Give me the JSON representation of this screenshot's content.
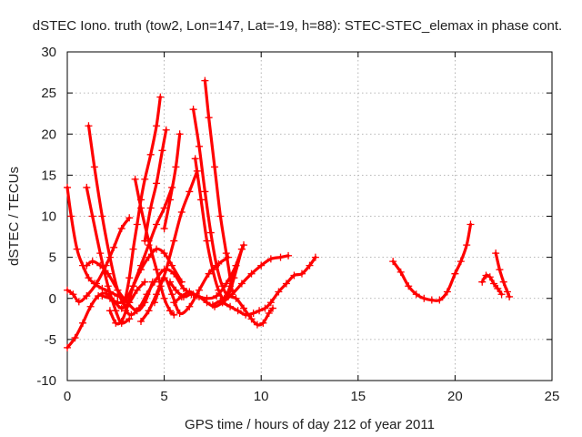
{
  "chart_data": {
    "type": "line",
    "title": "dSTEC Iono. truth (tow2, Lon=147, Lat=-19, h=88): STEC-STEC_elemax in phase cont.",
    "xlabel": "GPS time / hours of day 212 of year 2011",
    "ylabel": "dSTEC  / TECUs",
    "xlim": [
      0,
      25
    ],
    "ylim": [
      -10,
      30
    ],
    "xticks": [
      0,
      5,
      10,
      15,
      20,
      25
    ],
    "yticks": [
      -10,
      -5,
      0,
      5,
      10,
      15,
      20,
      25,
      30
    ],
    "grid": true,
    "marker": "plus",
    "color": "#ff0000",
    "series": [
      {
        "x": [
          0.0,
          0.2,
          0.5,
          0.8,
          1.1,
          1.4,
          1.8,
          2.2,
          2.6,
          3.0
        ],
        "y": [
          13.5,
          10.0,
          6.0,
          4.0,
          2.5,
          1.8,
          1.2,
          0.8,
          0.3,
          0.0
        ]
      },
      {
        "x": [
          0.0,
          0.3,
          0.6,
          1.0,
          1.5,
          2.0,
          2.4,
          2.8,
          3.2
        ],
        "y": [
          1.0,
          0.5,
          -0.4,
          0.3,
          1.8,
          4.0,
          6.2,
          8.5,
          9.8
        ]
      },
      {
        "x": [
          0.0,
          0.4,
          0.8,
          1.2,
          1.6,
          2.0,
          2.4,
          2.8,
          3.2,
          3.6,
          4.0
        ],
        "y": [
          -6.0,
          -4.8,
          -3.0,
          -1.0,
          0.3,
          0.6,
          -0.3,
          -1.2,
          -0.5,
          1.0,
          2.0
        ]
      },
      {
        "x": [
          1.1,
          1.4,
          1.8,
          2.2,
          2.6,
          3.0,
          3.2
        ],
        "y": [
          21.0,
          16.0,
          10.0,
          5.0,
          1.0,
          -1.0,
          -0.5
        ]
      },
      {
        "x": [
          1.0,
          1.3,
          1.7,
          2.1,
          2.5,
          2.8,
          3.2
        ],
        "y": [
          13.5,
          10.0,
          5.5,
          1.5,
          -1.5,
          -3.0,
          -2.5
        ]
      },
      {
        "x": [
          1.0,
          1.3,
          1.7,
          2.1,
          2.6,
          3.1,
          3.6,
          4.0,
          4.4
        ],
        "y": [
          4.0,
          4.5,
          4.0,
          3.0,
          1.0,
          -0.5,
          -1.5,
          -0.5,
          2.0
        ]
      },
      {
        "x": [
          1.8,
          2.2,
          2.6,
          3.0,
          3.4,
          3.8,
          4.2,
          4.6,
          5.0,
          5.4,
          5.9
        ],
        "y": [
          0.3,
          0.0,
          -0.5,
          -0.2,
          1.5,
          3.5,
          5.0,
          6.0,
          5.5,
          4.0,
          2.0
        ]
      },
      {
        "x": [
          2.2,
          2.5,
          2.8,
          3.1,
          3.4,
          3.8,
          4.2,
          4.6,
          5.0,
          5.4
        ],
        "y": [
          -1.5,
          -3.0,
          -2.8,
          -1.0,
          1.5,
          4.0,
          6.5,
          9.0,
          11.0,
          13.5
        ]
      },
      {
        "x": [
          3.0,
          3.2,
          3.4,
          3.6,
          3.8,
          4.0,
          4.3,
          4.6,
          4.8
        ],
        "y": [
          0.0,
          2.5,
          6.0,
          9.0,
          12.0,
          14.5,
          17.5,
          21.0,
          24.5
        ]
      },
      {
        "x": [
          3.0,
          3.3,
          3.7,
          4.1,
          4.5,
          5.0,
          5.5,
          6.0,
          6.5
        ],
        "y": [
          -1.5,
          -2.0,
          -1.2,
          0.5,
          2.0,
          3.5,
          3.0,
          1.2,
          0.5
        ]
      },
      {
        "x": [
          3.5,
          3.8,
          4.2,
          4.6,
          5.0,
          5.3,
          5.5
        ],
        "y": [
          14.5,
          11.0,
          7.0,
          3.5,
          0.0,
          -1.5,
          -2.0
        ]
      },
      {
        "x": [
          4.0,
          4.3,
          4.6,
          4.9,
          5.1
        ],
        "y": [
          7.0,
          11.0,
          14.0,
          18.0,
          20.5
        ]
      },
      {
        "x": [
          4.5,
          4.8,
          5.1,
          5.5,
          5.9,
          6.3,
          6.7
        ],
        "y": [
          -0.5,
          1.5,
          3.5,
          7.0,
          10.5,
          13.0,
          15.5
        ]
      },
      {
        "x": [
          5.0,
          5.3,
          5.6,
          5.8
        ],
        "y": [
          8.5,
          12.0,
          16.0,
          20.0
        ]
      },
      {
        "x": [
          3.8,
          4.2,
          4.6,
          5.0,
          5.4,
          5.8,
          6.3,
          6.8,
          7.3,
          7.8,
          8.3
        ],
        "y": [
          -2.8,
          -1.5,
          0.5,
          2.5,
          0.5,
          -1.8,
          -1.0,
          1.0,
          3.0,
          4.2,
          5.0
        ]
      },
      {
        "x": [
          5.5,
          5.9,
          6.3,
          6.7,
          7.2,
          7.7,
          8.2,
          8.7,
          9.0
        ],
        "y": [
          -0.5,
          0.2,
          0.8,
          0.3,
          0.0,
          0.3,
          1.8,
          4.0,
          6.0
        ]
      },
      {
        "x": [
          6.5,
          6.8,
          7.1,
          7.4,
          7.7,
          8.0,
          8.3,
          8.6,
          9.0
        ],
        "y": [
          23.0,
          18.5,
          13.0,
          8.0,
          4.0,
          1.5,
          0.5,
          2.5,
          6.0
        ]
      },
      {
        "x": [
          7.1,
          7.3,
          7.6,
          7.9,
          8.2,
          8.5
        ],
        "y": [
          26.5,
          22.0,
          16.0,
          10.0,
          5.5,
          1.0
        ]
      },
      {
        "x": [
          6.6,
          6.9,
          7.2,
          7.5,
          7.8,
          8.1,
          8.4,
          8.7,
          9.1
        ],
        "y": [
          17.0,
          12.0,
          7.0,
          3.5,
          1.0,
          0.0,
          1.5,
          4.0,
          6.5
        ]
      },
      {
        "x": [
          5.3,
          5.6,
          6.0,
          6.4,
          6.8,
          7.2,
          7.6,
          8.0,
          8.5,
          9.0,
          9.5,
          10.0,
          10.5,
          11.0,
          11.4
        ],
        "y": [
          2.0,
          1.0,
          0.2,
          0.5,
          0.2,
          -0.5,
          -1.0,
          -0.5,
          0.5,
          1.8,
          3.0,
          4.0,
          4.8,
          5.0,
          5.2
        ]
      },
      {
        "x": [
          8.0,
          8.4,
          8.8,
          9.2,
          9.6,
          9.9,
          10.2,
          10.5,
          10.9,
          11.3,
          11.7,
          12.1,
          12.5,
          12.8
        ],
        "y": [
          -0.5,
          -1.0,
          -1.5,
          -2.0,
          -1.8,
          -1.5,
          -1.2,
          -0.5,
          0.8,
          1.8,
          2.8,
          3.0,
          4.0,
          5.0
        ]
      },
      {
        "x": [
          7.5,
          7.9,
          8.3,
          8.7,
          9.1,
          9.5,
          9.8,
          10.1,
          10.4,
          10.6
        ],
        "y": [
          -0.8,
          -0.3,
          0.2,
          0.0,
          -1.2,
          -2.5,
          -3.2,
          -3.0,
          -1.8,
          -1.2
        ]
      },
      {
        "x": [
          16.8,
          17.2,
          17.6,
          18.0,
          18.4,
          18.8,
          19.2,
          19.6,
          20.0,
          20.3,
          20.6,
          20.8
        ],
        "y": [
          4.5,
          3.2,
          1.5,
          0.5,
          0.0,
          -0.2,
          -0.2,
          0.8,
          3.0,
          4.5,
          6.5,
          9.0
        ]
      },
      {
        "x": [
          21.4,
          21.6,
          21.8,
          22.0,
          22.2,
          22.4
        ],
        "y": [
          2.0,
          2.8,
          2.6,
          1.8,
          1.2,
          0.5
        ]
      },
      {
        "x": [
          22.1,
          22.3,
          22.5,
          22.7,
          22.8
        ],
        "y": [
          5.5,
          3.5,
          2.0,
          0.8,
          0.2
        ]
      }
    ]
  }
}
